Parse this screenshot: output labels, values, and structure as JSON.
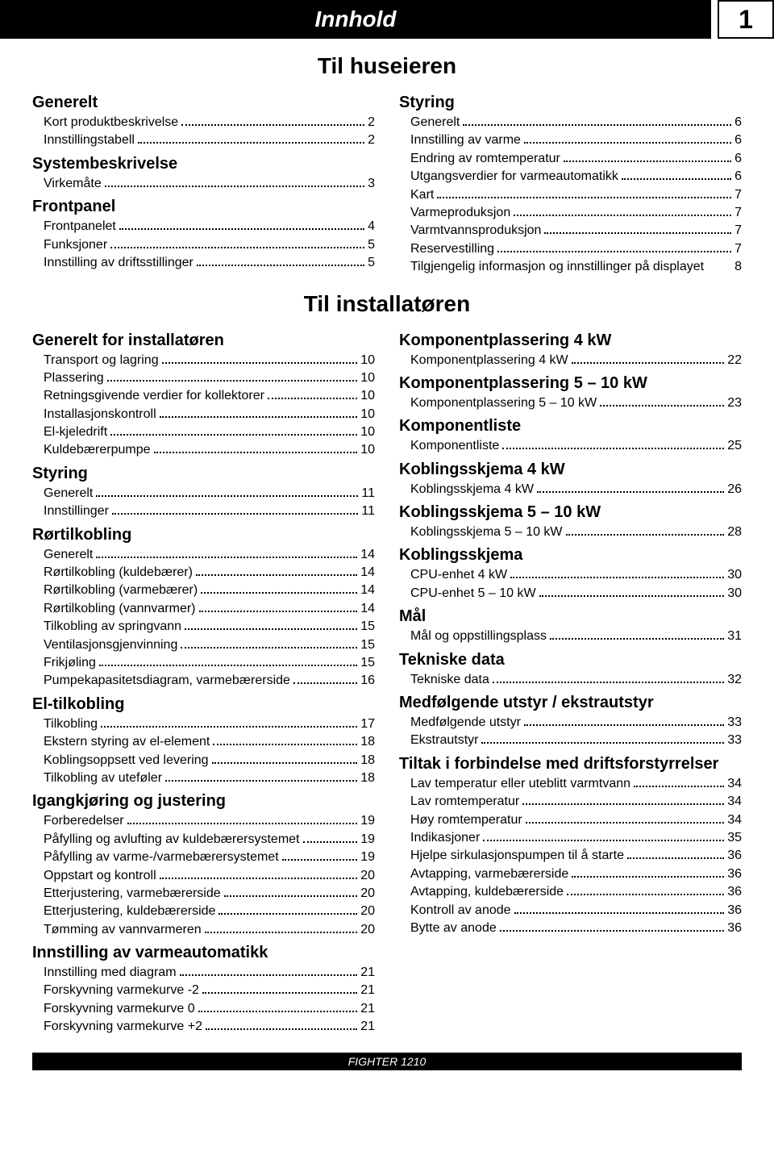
{
  "page": {
    "title": "Innhold",
    "number": "1",
    "footer": "FIGHTER 1210"
  },
  "sections": [
    {
      "title": "Til huseieren",
      "left": [
        {
          "type": "group",
          "label": "Generelt"
        },
        {
          "type": "entry",
          "label": "Kort produktbeskrivelse",
          "page": "2"
        },
        {
          "type": "entry",
          "label": "Innstillingstabell",
          "page": "2"
        },
        {
          "type": "group",
          "label": "Systembeskrivelse"
        },
        {
          "type": "entry",
          "label": "Virkemåte",
          "page": "3"
        },
        {
          "type": "group",
          "label": "Frontpanel"
        },
        {
          "type": "entry",
          "label": "Frontpanelet",
          "page": "4"
        },
        {
          "type": "entry",
          "label": "Funksjoner",
          "page": "5"
        },
        {
          "type": "entry",
          "label": "Innstilling av driftsstillinger",
          "page": "5"
        }
      ],
      "right": [
        {
          "type": "group",
          "label": "Styring"
        },
        {
          "type": "entry",
          "label": "Generelt",
          "page": "6"
        },
        {
          "type": "entry",
          "label": "Innstilling av varme",
          "page": "6"
        },
        {
          "type": "entry",
          "label": "Endring av romtemperatur",
          "page": "6"
        },
        {
          "type": "entry",
          "label": "Utgangsverdier for varmeautomatikk",
          "page": "6"
        },
        {
          "type": "entry",
          "label": "Kart",
          "page": "7"
        },
        {
          "type": "entry",
          "label": "Varmeproduksjon",
          "page": "7"
        },
        {
          "type": "entry",
          "label": "Varmtvannsproduksjon",
          "page": "7"
        },
        {
          "type": "entry",
          "label": "Reservestilling",
          "page": "7"
        },
        {
          "type": "plain",
          "label": "Tilgjengelig informasjon og innstillinger på displayet",
          "page": "8"
        }
      ]
    },
    {
      "title": "Til installatøren",
      "left": [
        {
          "type": "group",
          "label": "Generelt for installatøren"
        },
        {
          "type": "entry",
          "label": "Transport og lagring",
          "page": "10"
        },
        {
          "type": "entry",
          "label": "Plassering",
          "page": "10"
        },
        {
          "type": "entry",
          "label": "Retningsgivende verdier for kollektorer",
          "page": "10"
        },
        {
          "type": "entry",
          "label": "Installasjonskontroll",
          "page": "10"
        },
        {
          "type": "entry",
          "label": "El-kjeledrift",
          "page": "10"
        },
        {
          "type": "entry",
          "label": "Kuldebærerpumpe",
          "page": "10"
        },
        {
          "type": "group",
          "label": "Styring"
        },
        {
          "type": "entry",
          "label": "Generelt",
          "page": "11"
        },
        {
          "type": "entry",
          "label": "Innstillinger",
          "page": "11"
        },
        {
          "type": "group",
          "label": "Rørtilkobling"
        },
        {
          "type": "entry",
          "label": "Generelt",
          "page": "14"
        },
        {
          "type": "entry",
          "label": "Rørtilkobling (kuldebærer)",
          "page": "14"
        },
        {
          "type": "entry",
          "label": "Rørtilkobling (varmebærer)",
          "page": "14"
        },
        {
          "type": "entry",
          "label": "Rørtilkobling (vannvarmer)",
          "page": "14"
        },
        {
          "type": "entry",
          "label": "Tilkobling av springvann",
          "page": "15"
        },
        {
          "type": "entry",
          "label": "Ventilasjonsgjenvinning",
          "page": "15"
        },
        {
          "type": "entry",
          "label": "Frikjøling",
          "page": "15"
        },
        {
          "type": "entry",
          "label": "Pumpekapasitetsdiagram, varmebærerside",
          "page": "16"
        },
        {
          "type": "group",
          "label": "El-tilkobling"
        },
        {
          "type": "entry",
          "label": "Tilkobling",
          "page": "17"
        },
        {
          "type": "entry",
          "label": "Ekstern styring av el-element",
          "page": "18"
        },
        {
          "type": "entry",
          "label": "Koblingsoppsett ved levering",
          "page": "18"
        },
        {
          "type": "entry",
          "label": "Tilkobling av uteføler",
          "page": "18"
        },
        {
          "type": "group",
          "label": "Igangkjøring og justering"
        },
        {
          "type": "entry",
          "label": "Forberedelser",
          "page": "19"
        },
        {
          "type": "entry",
          "label": "Påfylling og avlufting av kuldebærersystemet",
          "page": "19"
        },
        {
          "type": "entry",
          "label": "Påfylling av varme-/varmebærersystemet",
          "page": "19"
        },
        {
          "type": "entry",
          "label": "Oppstart og kontroll",
          "page": "20"
        },
        {
          "type": "entry",
          "label": "Etterjustering, varmebærerside",
          "page": "20"
        },
        {
          "type": "entry",
          "label": "Etterjustering, kuldebærerside",
          "page": "20"
        },
        {
          "type": "entry",
          "label": "Tømming av vannvarmeren",
          "page": "20"
        },
        {
          "type": "group",
          "label": "Innstilling av varmeautomatikk"
        },
        {
          "type": "entry",
          "label": "Innstilling med diagram",
          "page": "21"
        },
        {
          "type": "entry",
          "label": "Forskyvning varmekurve -2",
          "page": "21"
        },
        {
          "type": "entry",
          "label": "Forskyvning varmekurve 0",
          "page": "21"
        },
        {
          "type": "entry",
          "label": "Forskyvning varmekurve +2",
          "page": "21"
        }
      ],
      "right": [
        {
          "type": "group",
          "label": "Komponentplassering 4 kW"
        },
        {
          "type": "entry",
          "label": "Komponentplassering 4 kW",
          "page": "22"
        },
        {
          "type": "group",
          "label": "Komponentplassering 5 – 10 kW"
        },
        {
          "type": "entry",
          "label": "Komponentplassering 5 – 10 kW",
          "page": "23"
        },
        {
          "type": "group",
          "label": "Komponentliste"
        },
        {
          "type": "entry",
          "label": "Komponentliste",
          "page": "25"
        },
        {
          "type": "group",
          "label": "Koblingsskjema 4 kW"
        },
        {
          "type": "entry",
          "label": "Koblingsskjema 4 kW",
          "page": "26"
        },
        {
          "type": "group",
          "label": "Koblingsskjema 5 – 10 kW"
        },
        {
          "type": "entry",
          "label": "Koblingsskjema 5 – 10 kW",
          "page": "28"
        },
        {
          "type": "group",
          "label": "Koblingsskjema"
        },
        {
          "type": "entry",
          "label": "CPU-enhet 4 kW",
          "page": "30"
        },
        {
          "type": "entry",
          "label": "CPU-enhet 5 – 10 kW",
          "page": "30"
        },
        {
          "type": "group",
          "label": "Mål"
        },
        {
          "type": "entry",
          "label": "Mål og oppstillingsplass",
          "page": "31"
        },
        {
          "type": "group",
          "label": "Tekniske data"
        },
        {
          "type": "entry",
          "label": "Tekniske data",
          "page": "32"
        },
        {
          "type": "group",
          "label": "Medfølgende utstyr / ekstrautstyr"
        },
        {
          "type": "entry",
          "label": "Medfølgende utstyr",
          "page": "33"
        },
        {
          "type": "entry",
          "label": "Ekstrautstyr",
          "page": "33"
        },
        {
          "type": "group",
          "label": "Tiltak i forbindelse med driftsforstyrrelser"
        },
        {
          "type": "entry",
          "label": "Lav temperatur eller uteblitt varmtvann",
          "page": "34"
        },
        {
          "type": "entry",
          "label": "Lav romtemperatur",
          "page": "34"
        },
        {
          "type": "entry",
          "label": "Høy romtemperatur",
          "page": "34"
        },
        {
          "type": "entry",
          "label": "Indikasjoner",
          "page": "35"
        },
        {
          "type": "entry",
          "label": "Hjelpe sirkulasjonspumpen til å starte",
          "page": "36"
        },
        {
          "type": "entry",
          "label": "Avtapping, varmebærerside",
          "page": "36"
        },
        {
          "type": "entry",
          "label": "Avtapping, kuldebærerside",
          "page": "36"
        },
        {
          "type": "entry",
          "label": "Kontroll av anode",
          "page": "36"
        },
        {
          "type": "entry",
          "label": "Bytte av anode",
          "page": "36"
        }
      ]
    }
  ]
}
